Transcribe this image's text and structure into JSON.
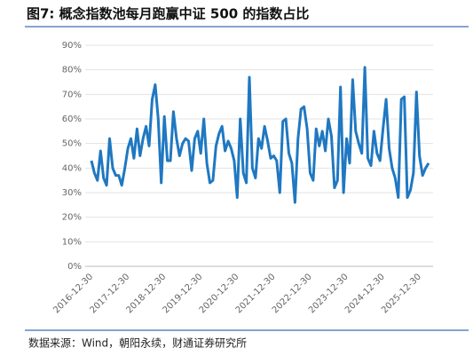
{
  "chart_data": {
    "type": "line",
    "title": "图7: 概念指数池每月跑赢中证 500 的指数占比",
    "source": "数据来源：Wind，朝阳永续，财通证券研究所",
    "categories": [
      "2016-12-30",
      null,
      null,
      null,
      null,
      null,
      null,
      null,
      null,
      null,
      null,
      null,
      "2017-12-30",
      null,
      null,
      null,
      null,
      null,
      null,
      null,
      null,
      null,
      null,
      null,
      "2018-12-30",
      null,
      null,
      null,
      null,
      null,
      null,
      null,
      null,
      null,
      null,
      null,
      "2019-12-30",
      null,
      null,
      null,
      null,
      null,
      null,
      null,
      null,
      null,
      null,
      null,
      "2020-12-30",
      null,
      null,
      null,
      null,
      null,
      null,
      null,
      null,
      null,
      null,
      null,
      "2021-12-30",
      null,
      null,
      null,
      null,
      null,
      null,
      null,
      null,
      null,
      null,
      null,
      "2022-12-30",
      null,
      null,
      null,
      null,
      null,
      null,
      null,
      null,
      null,
      null,
      null,
      "2023-12-30",
      null,
      null,
      null,
      null,
      null,
      null,
      null,
      null,
      null,
      null,
      null,
      "2024-12-30",
      null,
      null,
      null,
      null,
      null,
      null,
      null,
      null,
      null,
      null,
      null,
      "2025-12-30",
      null,
      null,
      null
    ],
    "series": [
      {
        "name": "占比",
        "color": "#1f78c1",
        "values": [
          43,
          38,
          35,
          47,
          36,
          33,
          52,
          40,
          37,
          37,
          33,
          40,
          48,
          52,
          44,
          56,
          45,
          52,
          57,
          49,
          68,
          74,
          60,
          34,
          61,
          43,
          43,
          63,
          52,
          45,
          50,
          52,
          51,
          39,
          52,
          55,
          46,
          60,
          42,
          34,
          35,
          49,
          54,
          57,
          47,
          51,
          48,
          43,
          28,
          60,
          38,
          34,
          77,
          40,
          36,
          52,
          48,
          57,
          51,
          44,
          45,
          43,
          30,
          59,
          60,
          46,
          42,
          26,
          52,
          64,
          65,
          56,
          38,
          35,
          56,
          49,
          55,
          47,
          60,
          53,
          32,
          35,
          73,
          30,
          52,
          42,
          76,
          55,
          50,
          46,
          81,
          44,
          41,
          55,
          46,
          43,
          56,
          68,
          48,
          40,
          36,
          28,
          68,
          69,
          28,
          31,
          38,
          71,
          45,
          37,
          40,
          42
        ]
      }
    ],
    "ylim": [
      0,
      90
    ],
    "yticks": [
      {
        "value": 0,
        "label": "0%"
      },
      {
        "value": 10,
        "label": "10%"
      },
      {
        "value": 20,
        "label": "20%"
      },
      {
        "value": 30,
        "label": "30%"
      },
      {
        "value": 40,
        "label": "40%"
      },
      {
        "value": 50,
        "label": "50%"
      },
      {
        "value": 60,
        "label": "60%"
      },
      {
        "value": 70,
        "label": "70%"
      },
      {
        "value": 80,
        "label": "80%"
      },
      {
        "value": 90,
        "label": "90%"
      }
    ],
    "grid": true
  }
}
